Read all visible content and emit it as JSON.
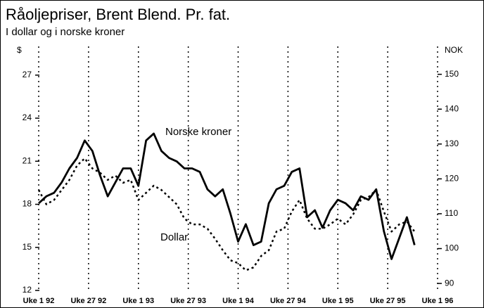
{
  "chart_data": {
    "type": "line",
    "title": "Råoljepriser, Brent Blend. Pr. fat.",
    "subtitle": "I dollar og i norske kroner",
    "y_label": "$",
    "y2_label": "NOK",
    "annotations": [
      "Norske kroner",
      "Dollar"
    ],
    "x": [
      0,
      4,
      8,
      12,
      16,
      20,
      24,
      28,
      32,
      36,
      40,
      44,
      48,
      52,
      56,
      60,
      64,
      68,
      72,
      76,
      80,
      84,
      88,
      92,
      96,
      100,
      104,
      108,
      112,
      116,
      120,
      124,
      128,
      132,
      136,
      140,
      144,
      148,
      152,
      156,
      160,
      164,
      168,
      172,
      176,
      180,
      184,
      188,
      192,
      196
    ],
    "xlim": [
      0,
      208
    ],
    "xticks": [
      {
        "value": 0,
        "label": "Uke 1 92"
      },
      {
        "value": 26,
        "label": "Uke 27 92"
      },
      {
        "value": 52,
        "label": "Uke 1 93"
      },
      {
        "value": 78,
        "label": "Uke 27 93"
      },
      {
        "value": 104,
        "label": "Uke 1 94"
      },
      {
        "value": 130,
        "label": "Uke 27 94"
      },
      {
        "value": 156,
        "label": "Uke 1 95"
      },
      {
        "value": 182,
        "label": "Uke 27 95"
      },
      {
        "value": 208,
        "label": "Uke 1 96"
      }
    ],
    "ylim": [
      12,
      29
    ],
    "yticks": [
      12,
      15,
      18,
      21,
      24,
      27
    ],
    "y2lim": [
      88,
      158
    ],
    "y2ticks": [
      90,
      100,
      110,
      120,
      130,
      140,
      150
    ],
    "grid": true,
    "series": [
      {
        "name": "Norske kroner",
        "color": "#000000",
        "axis": "y2",
        "style": "solid",
        "values": [
          113,
          115,
          116,
          119,
          123,
          126,
          131,
          128,
          121,
          115,
          119,
          123,
          123,
          118,
          131,
          133,
          128,
          126,
          125,
          123,
          123,
          122,
          117,
          115,
          117,
          110,
          102,
          107,
          101,
          102,
          113,
          117,
          118,
          122,
          123,
          109,
          111,
          106,
          111,
          114,
          113,
          111,
          115,
          114,
          117,
          105,
          97,
          103,
          109,
          101
        ]
      },
      {
        "name": "Dollar",
        "color": "#000000",
        "axis": "y",
        "style": "dotted",
        "values": [
          19.0,
          18.0,
          18.3,
          19.0,
          19.7,
          20.7,
          21.2,
          20.5,
          20.2,
          19.7,
          20.0,
          19.5,
          19.7,
          18.3,
          18.8,
          19.3,
          19.0,
          18.5,
          18.0,
          17.0,
          16.6,
          16.6,
          16.3,
          15.6,
          14.8,
          14.1,
          13.9,
          13.4,
          13.6,
          14.4,
          14.8,
          16.1,
          16.3,
          17.5,
          18.3,
          17.0,
          16.3,
          16.3,
          16.6,
          17.0,
          16.6,
          17.3,
          18.3,
          18.5,
          19.0,
          17.5,
          16.1,
          16.6,
          16.8,
          16.1
        ]
      }
    ]
  }
}
